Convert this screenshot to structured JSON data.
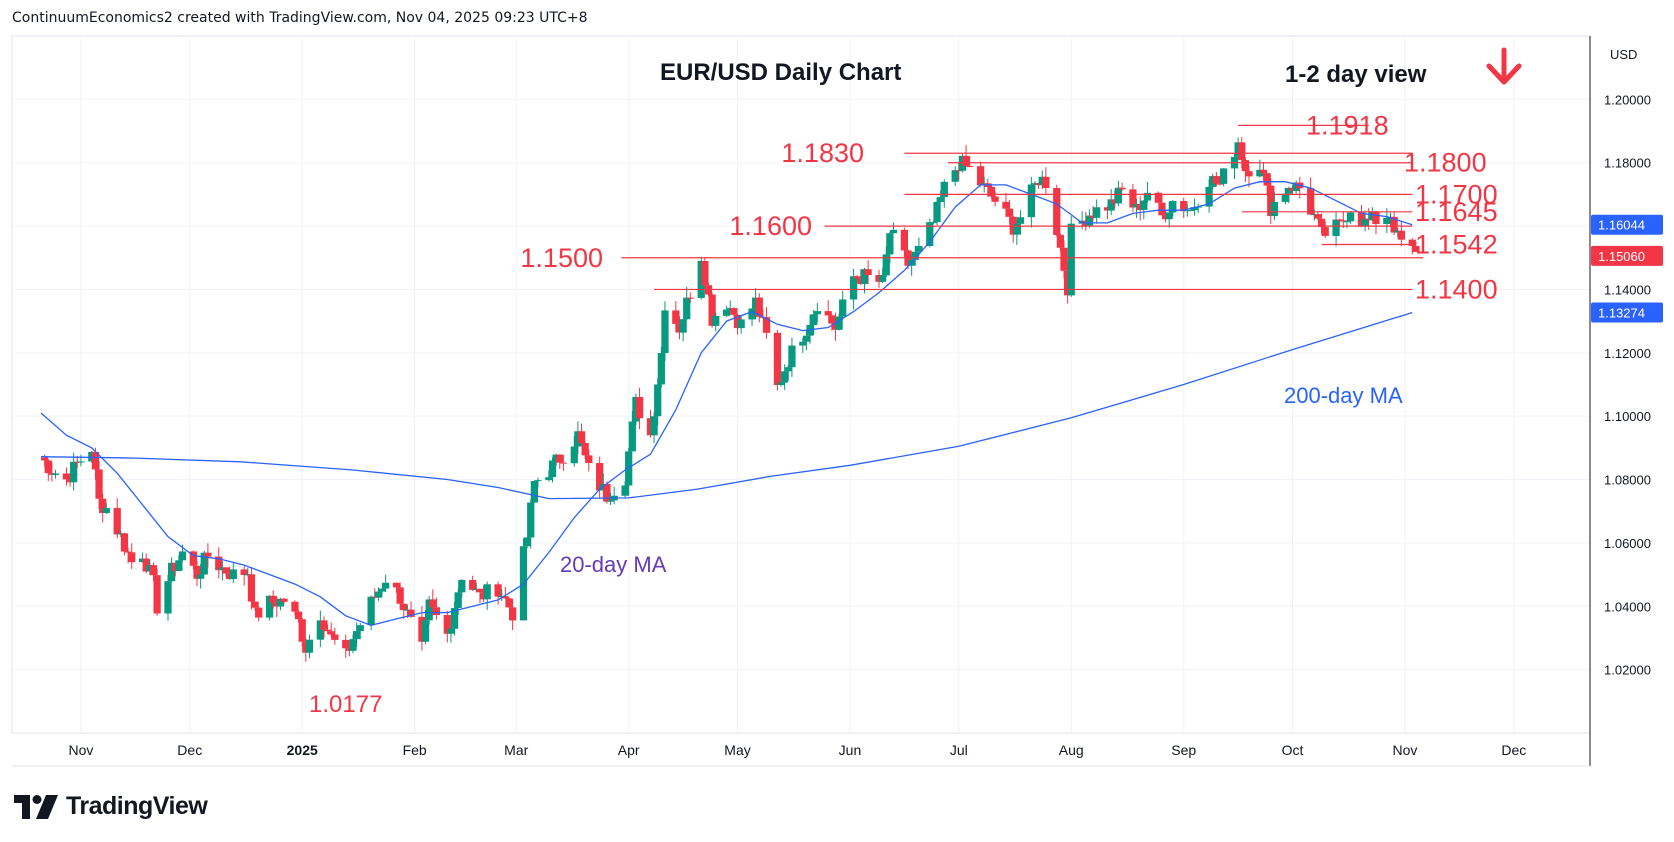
{
  "header": {
    "attribution": "ContinuumEconomics2 created with TradingView.com, Nov 04, 2025 09:23 UTC+8"
  },
  "footer": {
    "brand": "TradingView"
  },
  "chart_data": {
    "type": "candlestick",
    "title": "EUR/USD Daily Chart",
    "subtitle": "1-2 day view",
    "bias": "down",
    "currency": "USD",
    "ylim": [
      1.0,
      1.22
    ],
    "y_ticks": [
      "1.20000",
      "1.18000",
      "1.16000",
      "1.14000",
      "1.12000",
      "1.10000",
      "1.08000",
      "1.06000",
      "1.04000",
      "1.02000"
    ],
    "x_ticks": [
      {
        "label": "Nov",
        "x": "2024-11-01"
      },
      {
        "label": "Dec",
        "x": "2024-12-01"
      },
      {
        "label": "2025",
        "x": "2025-01-01"
      },
      {
        "label": "Feb",
        "x": "2025-02-01"
      },
      {
        "label": "Mar",
        "x": "2025-03-01"
      },
      {
        "label": "Apr",
        "x": "2025-04-01"
      },
      {
        "label": "May",
        "x": "2025-05-01"
      },
      {
        "label": "Jun",
        "x": "2025-06-01"
      },
      {
        "label": "Jul",
        "x": "2025-07-01"
      },
      {
        "label": "Aug",
        "x": "2025-08-01"
      },
      {
        "label": "Sep",
        "x": "2025-09-01"
      },
      {
        "label": "Oct",
        "x": "2025-10-01"
      },
      {
        "label": "Nov",
        "x": "2025-11-01"
      },
      {
        "label": "Dec",
        "x": "2025-12-01"
      }
    ],
    "price_badges": [
      {
        "label": "1.16044",
        "value": 1.16044,
        "color": "#2962ff"
      },
      {
        "label": "1.15060",
        "value": 1.1506,
        "color": "#f23645"
      },
      {
        "label": "1.13274",
        "value": 1.13274,
        "color": "#2962ff"
      }
    ],
    "levels": [
      {
        "label": "1.1918",
        "value": 1.1918,
        "from": "2025-09-16",
        "to": "2025-10-22"
      },
      {
        "label": "1.1830",
        "value": 1.183,
        "from": "2025-06-16",
        "to": "2025-11-03"
      },
      {
        "label": "1.1800",
        "value": 1.18,
        "from": "2025-06-28",
        "to": "2025-11-03"
      },
      {
        "label": "1.1700",
        "value": 1.17,
        "from": "2025-06-16",
        "to": "2025-11-03"
      },
      {
        "label": "1.1645",
        "value": 1.1645,
        "from": "2025-09-17",
        "to": "2025-11-03"
      },
      {
        "label": "1.1600",
        "value": 1.16,
        "from": "2025-05-25",
        "to": "2025-11-03"
      },
      {
        "label": "1.1542",
        "value": 1.1542,
        "from": "2025-10-09",
        "to": "2025-11-03"
      },
      {
        "label": "1.1500",
        "value": 1.15,
        "from": "2025-03-30",
        "to": "2025-11-06"
      },
      {
        "label": "1.1400",
        "value": 1.14,
        "from": "2025-04-08",
        "to": "2025-11-03"
      }
    ],
    "annotations": [
      {
        "label": "1.0177",
        "value": 1.0177,
        "x": "2025-01-13"
      }
    ],
    "series": [
      {
        "name": "20-day MA",
        "color": "#2962ff",
        "label_color": "#673ab7",
        "values": [
          [
            "2024-10-21",
            1.101
          ],
          [
            "2024-10-28",
            1.094
          ],
          [
            "2024-11-04",
            1.09
          ],
          [
            "2024-11-11",
            1.082
          ],
          [
            "2024-11-18",
            1.072
          ],
          [
            "2024-11-25",
            1.062
          ],
          [
            "2024-12-02",
            1.056
          ],
          [
            "2024-12-09",
            1.055
          ],
          [
            "2024-12-16",
            1.053
          ],
          [
            "2024-12-23",
            1.05
          ],
          [
            "2024-12-30",
            1.047
          ],
          [
            "2025-01-06",
            1.043
          ],
          [
            "2025-01-13",
            1.037
          ],
          [
            "2025-01-20",
            1.034
          ],
          [
            "2025-01-27",
            1.036
          ],
          [
            "2025-02-03",
            1.038
          ],
          [
            "2025-02-10",
            1.038
          ],
          [
            "2025-02-17",
            1.04
          ],
          [
            "2025-02-24",
            1.042
          ],
          [
            "2025-03-03",
            1.047
          ],
          [
            "2025-03-10",
            1.057
          ],
          [
            "2025-03-17",
            1.068
          ],
          [
            "2025-03-24",
            1.077
          ],
          [
            "2025-03-31",
            1.083
          ],
          [
            "2025-04-07",
            1.088
          ],
          [
            "2025-04-14",
            1.102
          ],
          [
            "2025-04-21",
            1.12
          ],
          [
            "2025-04-28",
            1.13
          ],
          [
            "2025-05-05",
            1.133
          ],
          [
            "2025-05-12",
            1.129
          ],
          [
            "2025-05-19",
            1.127
          ],
          [
            "2025-05-26",
            1.128
          ],
          [
            "2025-06-02",
            1.133
          ],
          [
            "2025-06-09",
            1.139
          ],
          [
            "2025-06-16",
            1.146
          ],
          [
            "2025-06-23",
            1.155
          ],
          [
            "2025-06-30",
            1.166
          ],
          [
            "2025-07-07",
            1.173
          ],
          [
            "2025-07-14",
            1.173
          ],
          [
            "2025-07-21",
            1.17
          ],
          [
            "2025-07-28",
            1.167
          ],
          [
            "2025-08-04",
            1.161
          ],
          [
            "2025-08-11",
            1.161
          ],
          [
            "2025-08-18",
            1.164
          ],
          [
            "2025-08-25",
            1.165
          ],
          [
            "2025-09-01",
            1.165
          ],
          [
            "2025-09-08",
            1.167
          ],
          [
            "2025-09-15",
            1.172
          ],
          [
            "2025-09-22",
            1.174
          ],
          [
            "2025-09-29",
            1.174
          ],
          [
            "2025-10-06",
            1.172
          ],
          [
            "2025-10-13",
            1.168
          ],
          [
            "2025-10-20",
            1.164
          ],
          [
            "2025-10-27",
            1.163
          ],
          [
            "2025-11-03",
            1.1604
          ]
        ]
      },
      {
        "name": "200-day MA",
        "color": "#2962ff",
        "label_color": "#2962ff",
        "values": [
          [
            "2024-10-21",
            1.0872
          ],
          [
            "2024-11-15",
            1.0868
          ],
          [
            "2024-12-15",
            1.0856
          ],
          [
            "2025-01-15",
            1.083
          ],
          [
            "2025-02-10",
            1.08
          ],
          [
            "2025-02-24",
            1.0775
          ],
          [
            "2025-03-10",
            1.074
          ],
          [
            "2025-04-01",
            1.0742
          ],
          [
            "2025-04-20",
            1.077
          ],
          [
            "2025-05-10",
            1.081
          ],
          [
            "2025-06-01",
            1.0845
          ],
          [
            "2025-07-01",
            1.0905
          ],
          [
            "2025-08-01",
            1.0995
          ],
          [
            "2025-09-01",
            1.11
          ],
          [
            "2025-10-01",
            1.121
          ],
          [
            "2025-11-03",
            1.1327
          ]
        ]
      }
    ],
    "candles_ohlc_close_path": [
      [
        "2024-10-21",
        1.087
      ],
      [
        "2024-10-24",
        1.083
      ],
      [
        "2024-10-28",
        1.08
      ],
      [
        "2024-10-31",
        1.085
      ],
      [
        "2024-11-04",
        1.09
      ],
      [
        "2024-11-06",
        1.073
      ],
      [
        "2024-11-08",
        1.071
      ],
      [
        "2024-11-12",
        1.062
      ],
      [
        "2024-11-15",
        1.054
      ],
      [
        "2024-11-18",
        1.057
      ],
      [
        "2024-11-21",
        1.047
      ],
      [
        "2024-11-22",
        1.04
      ],
      [
        "2024-11-26",
        1.051
      ],
      [
        "2024-11-29",
        1.057
      ],
      [
        "2024-12-03",
        1.05
      ],
      [
        "2024-12-06",
        1.056
      ],
      [
        "2024-12-10",
        1.052
      ],
      [
        "2024-12-13",
        1.05
      ],
      [
        "2024-12-17",
        1.051
      ],
      [
        "2024-12-19",
        1.037
      ],
      [
        "2024-12-23",
        1.041
      ],
      [
        "2024-12-27",
        1.042
      ],
      [
        "2024-12-31",
        1.035
      ],
      [
        "2025-01-02",
        1.027
      ],
      [
        "2025-01-06",
        1.038
      ],
      [
        "2025-01-09",
        1.03
      ],
      [
        "2025-01-13",
        1.024
      ],
      [
        "2025-01-15",
        1.03
      ],
      [
        "2025-01-20",
        1.041
      ],
      [
        "2025-01-24",
        1.049
      ],
      [
        "2025-01-28",
        1.043
      ],
      [
        "2025-02-03",
        1.026
      ],
      [
        "2025-02-05",
        1.04
      ],
      [
        "2025-02-10",
        1.031
      ],
      [
        "2025-02-14",
        1.05
      ],
      [
        "2025-02-19",
        1.043
      ],
      [
        "2025-02-24",
        1.046
      ],
      [
        "2025-02-28",
        1.038
      ],
      [
        "2025-03-04",
        1.062
      ],
      [
        "2025-03-06",
        1.079
      ],
      [
        "2025-03-10",
        1.083
      ],
      [
        "2025-03-14",
        1.088
      ],
      [
        "2025-03-18",
        1.094
      ],
      [
        "2025-03-21",
        1.083
      ],
      [
        "2025-03-26",
        1.075
      ],
      [
        "2025-03-31",
        1.081
      ],
      [
        "2025-04-03",
        1.104
      ],
      [
        "2025-04-07",
        1.094
      ],
      [
        "2025-04-10",
        1.12
      ],
      [
        "2025-04-11",
        1.136
      ],
      [
        "2025-04-15",
        1.128
      ],
      [
        "2025-04-21",
        1.151
      ],
      [
        "2025-04-24",
        1.131
      ],
      [
        "2025-04-28",
        1.136
      ],
      [
        "2025-05-02",
        1.129
      ],
      [
        "2025-05-06",
        1.136
      ],
      [
        "2025-05-09",
        1.125
      ],
      [
        "2025-05-12",
        1.109
      ],
      [
        "2025-05-15",
        1.118
      ],
      [
        "2025-05-20",
        1.128
      ],
      [
        "2025-05-23",
        1.136
      ],
      [
        "2025-05-28",
        1.128
      ],
      [
        "2025-06-02",
        1.144
      ],
      [
        "2025-06-05",
        1.144
      ],
      [
        "2025-06-10",
        1.142
      ],
      [
        "2025-06-12",
        1.158
      ],
      [
        "2025-06-17",
        1.148
      ],
      [
        "2025-06-20",
        1.152
      ],
      [
        "2025-06-24",
        1.161
      ],
      [
        "2025-06-27",
        1.172
      ],
      [
        "2025-07-01",
        1.18
      ],
      [
        "2025-07-04",
        1.178
      ],
      [
        "2025-07-08",
        1.172
      ],
      [
        "2025-07-11",
        1.168
      ],
      [
        "2025-07-16",
        1.16
      ],
      [
        "2025-07-18",
        1.163
      ],
      [
        "2025-07-23",
        1.175
      ],
      [
        "2025-07-25",
        1.174
      ],
      [
        "2025-07-28",
        1.159
      ],
      [
        "2025-07-31",
        1.141
      ],
      [
        "2025-08-01",
        1.158
      ],
      [
        "2025-08-06",
        1.164
      ],
      [
        "2025-08-12",
        1.167
      ],
      [
        "2025-08-15",
        1.171
      ],
      [
        "2025-08-19",
        1.165
      ],
      [
        "2025-08-22",
        1.171
      ],
      [
        "2025-08-26",
        1.163
      ],
      [
        "2025-08-29",
        1.168
      ],
      [
        "2025-09-03",
        1.165
      ],
      [
        "2025-09-08",
        1.175
      ],
      [
        "2025-09-11",
        1.173
      ],
      [
        "2025-09-16",
        1.187
      ],
      [
        "2025-09-18",
        1.178
      ],
      [
        "2025-09-22",
        1.18
      ],
      [
        "2025-09-25",
        1.166
      ],
      [
        "2025-09-30",
        1.173
      ],
      [
        "2025-10-03",
        1.172
      ],
      [
        "2025-10-07",
        1.163
      ],
      [
        "2025-10-09",
        1.157
      ],
      [
        "2025-10-14",
        1.16
      ],
      [
        "2025-10-17",
        1.166
      ],
      [
        "2025-10-21",
        1.161
      ],
      [
        "2025-10-24",
        1.162
      ],
      [
        "2025-10-28",
        1.164
      ],
      [
        "2025-10-30",
        1.156
      ],
      [
        "2025-11-03",
        1.152
      ],
      [
        "2025-11-04",
        1.1506
      ]
    ]
  }
}
